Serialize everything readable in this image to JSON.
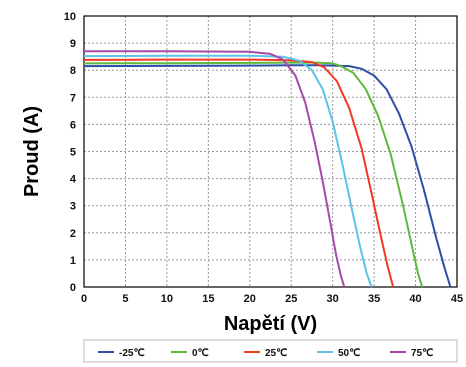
{
  "chart_data": {
    "type": "line",
    "title": "",
    "xlabel": "Napětí (V)",
    "ylabel": "Proud (A)",
    "xlim": [
      0,
      45
    ],
    "ylim": [
      0,
      10
    ],
    "xticks": [
      "0",
      "5",
      "10",
      "15",
      "20",
      "25",
      "30",
      "35",
      "40",
      "45"
    ],
    "yticks": [
      "0",
      "1",
      "2",
      "3",
      "4",
      "5",
      "6",
      "7",
      "8",
      "9",
      "10"
    ],
    "grid": true,
    "legend_position": "bottom",
    "series": [
      {
        "name": "-25℃",
        "color": "#2b4fa8",
        "x": [
          0,
          10,
          20,
          25,
          28,
          30,
          32,
          33.5,
          35,
          36.5,
          38,
          39.5,
          41,
          42.5,
          43.5,
          44.2
        ],
        "y": [
          8.15,
          8.16,
          8.17,
          8.18,
          8.18,
          8.17,
          8.15,
          8.05,
          7.8,
          7.3,
          6.4,
          5.2,
          3.6,
          1.8,
          0.7,
          0
        ]
      },
      {
        "name": "0℃",
        "color": "#5db83b",
        "x": [
          0,
          10,
          20,
          25,
          28,
          30,
          31,
          32.5,
          34,
          35.5,
          37,
          38.5,
          39.5,
          40.3,
          40.8
        ],
        "y": [
          8.25,
          8.26,
          8.27,
          8.28,
          8.28,
          8.25,
          8.15,
          7.9,
          7.3,
          6.3,
          4.9,
          3.0,
          1.6,
          0.5,
          0
        ]
      },
      {
        "name": "25℃",
        "color": "#f03a22",
        "x": [
          0,
          10,
          20,
          25,
          27.5,
          29,
          30.5,
          32,
          33.5,
          34.8,
          35.8,
          36.6,
          37.3
        ],
        "y": [
          8.38,
          8.39,
          8.39,
          8.37,
          8.3,
          8.1,
          7.6,
          6.6,
          5.1,
          3.3,
          1.9,
          0.8,
          0
        ]
      },
      {
        "name": "50℃",
        "color": "#5bc4e6",
        "x": [
          0,
          10,
          20,
          24,
          26,
          27.5,
          28.8,
          30,
          31.2,
          32.3,
          33.3,
          34.1,
          34.7
        ],
        "y": [
          8.52,
          8.53,
          8.53,
          8.5,
          8.35,
          8.0,
          7.3,
          6.1,
          4.5,
          2.9,
          1.5,
          0.5,
          0
        ]
      },
      {
        "name": "75℃",
        "color": "#a54aa8",
        "x": [
          0,
          10,
          20,
          22.5,
          24,
          25.5,
          26.7,
          27.8,
          28.8,
          29.7,
          30.4,
          31,
          31.4
        ],
        "y": [
          8.7,
          8.7,
          8.68,
          8.6,
          8.4,
          7.8,
          6.8,
          5.4,
          3.9,
          2.4,
          1.2,
          0.4,
          0
        ]
      }
    ]
  }
}
